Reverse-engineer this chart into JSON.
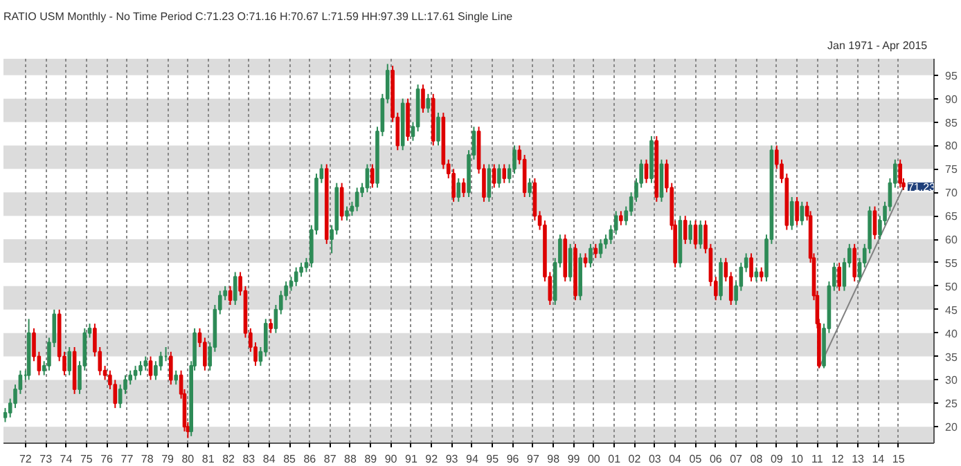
{
  "chart_data": {
    "type": "candlestick",
    "title": "RATIO USM Monthly -  No Time Period   C:71.23 O:71.16 H:70.67 L:71.59 HH:97.39 LL:17.61 Single Line",
    "subtitle": "Jan 1971  -  Apr 2015",
    "x": [
      "1971-01",
      "1971-04",
      "1971-07",
      "1971-10",
      "1972-01",
      "1972-03",
      "1972-06",
      "1972-09",
      "1972-12",
      "1973-03",
      "1973-06",
      "1973-09",
      "1973-12",
      "1974-03",
      "1974-06",
      "1974-09",
      "1974-12",
      "1975-03",
      "1975-06",
      "1975-09",
      "1975-12",
      "1976-03",
      "1976-06",
      "1976-09",
      "1976-12",
      "1977-03",
      "1977-06",
      "1977-09",
      "1977-12",
      "1978-03",
      "1978-06",
      "1978-09",
      "1978-12",
      "1979-03",
      "1979-06",
      "1979-09",
      "1979-11",
      "1980-01",
      "1980-03",
      "1980-05",
      "1980-08",
      "1980-11",
      "1981-02",
      "1981-05",
      "1981-08",
      "1981-11",
      "1982-02",
      "1982-05",
      "1982-08",
      "1982-11",
      "1983-02",
      "1983-05",
      "1983-08",
      "1983-11",
      "1984-02",
      "1984-05",
      "1984-08",
      "1984-11",
      "1985-02",
      "1985-05",
      "1985-08",
      "1985-11",
      "1986-02",
      "1986-05",
      "1986-08",
      "1986-11",
      "1987-02",
      "1987-05",
      "1987-08",
      "1987-11",
      "1988-02",
      "1988-05",
      "1988-08",
      "1988-11",
      "1989-02",
      "1989-05",
      "1989-08",
      "1989-11",
      "1990-02",
      "1990-05",
      "1990-08",
      "1990-11",
      "1991-02",
      "1991-05",
      "1991-08",
      "1991-11",
      "1992-02",
      "1992-05",
      "1992-08",
      "1992-11",
      "1993-02",
      "1993-05",
      "1993-08",
      "1993-11",
      "1994-02",
      "1994-05",
      "1994-08",
      "1994-11",
      "1995-02",
      "1995-05",
      "1995-08",
      "1995-11",
      "1996-02",
      "1996-05",
      "1996-08",
      "1996-11",
      "1997-02",
      "1997-05",
      "1997-08",
      "1997-11",
      "1998-02",
      "1998-05",
      "1998-08",
      "1998-11",
      "1999-02",
      "1999-05",
      "1999-08",
      "1999-11",
      "2000-02",
      "2000-05",
      "2000-08",
      "2000-11",
      "2001-02",
      "2001-05",
      "2001-08",
      "2001-11",
      "2002-02",
      "2002-05",
      "2002-08",
      "2002-11",
      "2003-02",
      "2003-05",
      "2003-08",
      "2003-11",
      "2004-01",
      "2004-04",
      "2004-07",
      "2004-10",
      "2005-01",
      "2005-04",
      "2005-07",
      "2005-10",
      "2006-01",
      "2006-04",
      "2006-07",
      "2006-10",
      "2007-01",
      "2007-04",
      "2007-07",
      "2007-10",
      "2008-01",
      "2008-04",
      "2008-07",
      "2008-10",
      "2009-01",
      "2009-04",
      "2009-07",
      "2009-10",
      "2010-01",
      "2010-04",
      "2010-07",
      "2010-09",
      "2010-11",
      "2011-01",
      "2011-02",
      "2011-05",
      "2011-08",
      "2011-11",
      "2012-02",
      "2012-05",
      "2012-08",
      "2012-11",
      "2013-02",
      "2013-05",
      "2013-08",
      "2013-11",
      "2014-02",
      "2014-05",
      "2014-08",
      "2014-11",
      "2015-02",
      "2015-04"
    ],
    "ohlc": [
      [
        22,
        24,
        21,
        23
      ],
      [
        23,
        26,
        22,
        25
      ],
      [
        25,
        29,
        24,
        28
      ],
      [
        28,
        32,
        27,
        31
      ],
      [
        31,
        32,
        30,
        31
      ],
      [
        31,
        43,
        30,
        40
      ],
      [
        40,
        41,
        34,
        35
      ],
      [
        35,
        36,
        31,
        32
      ],
      [
        32,
        34,
        31,
        33
      ],
      [
        33,
        39,
        32,
        38
      ],
      [
        38,
        45,
        37,
        44
      ],
      [
        44,
        45,
        34,
        35
      ],
      [
        35,
        36,
        31,
        32
      ],
      [
        32,
        37,
        31,
        36
      ],
      [
        36,
        37,
        27,
        28
      ],
      [
        28,
        34,
        27,
        33
      ],
      [
        33,
        41,
        32,
        40
      ],
      [
        40,
        42,
        39,
        41
      ],
      [
        41,
        42,
        35,
        36
      ],
      [
        36,
        37,
        31,
        32
      ],
      [
        32,
        33,
        30,
        31
      ],
      [
        31,
        32,
        28,
        29
      ],
      [
        29,
        30,
        24,
        25
      ],
      [
        25,
        29,
        24,
        28
      ],
      [
        28,
        31,
        27,
        30
      ],
      [
        30,
        32,
        29,
        31
      ],
      [
        31,
        33,
        30,
        32
      ],
      [
        32,
        34,
        31,
        33
      ],
      [
        33,
        35,
        32,
        34
      ],
      [
        34,
        35,
        30,
        31
      ],
      [
        31,
        34,
        30,
        33
      ],
      [
        33,
        36,
        32,
        35
      ],
      [
        35,
        37,
        34,
        35
      ],
      [
        35,
        36,
        29,
        30
      ],
      [
        30,
        32,
        29,
        31
      ],
      [
        31,
        32,
        26,
        27
      ],
      [
        27,
        28,
        19,
        20
      ],
      [
        20,
        21,
        17.61,
        19
      ],
      [
        19,
        34,
        18,
        33
      ],
      [
        33,
        41,
        32,
        40
      ],
      [
        40,
        41,
        37,
        38
      ],
      [
        38,
        39,
        32,
        33
      ],
      [
        33,
        38,
        32,
        37
      ],
      [
        37,
        46,
        36,
        45
      ],
      [
        45,
        49,
        44,
        48
      ],
      [
        48,
        50,
        47,
        49
      ],
      [
        49,
        50,
        46,
        47
      ],
      [
        47,
        53,
        46,
        52
      ],
      [
        52,
        53,
        48,
        49
      ],
      [
        49,
        50,
        39,
        40
      ],
      [
        40,
        41,
        36,
        37
      ],
      [
        37,
        38,
        33,
        34
      ],
      [
        34,
        37,
        33,
        36
      ],
      [
        36,
        43,
        35,
        42
      ],
      [
        42,
        43,
        40,
        41
      ],
      [
        41,
        46,
        40,
        45
      ],
      [
        45,
        49,
        44,
        48
      ],
      [
        48,
        51,
        47,
        50
      ],
      [
        50,
        52,
        49,
        51
      ],
      [
        51,
        54,
        50,
        53
      ],
      [
        53,
        55,
        52,
        54
      ],
      [
        54,
        56,
        53,
        55
      ],
      [
        55,
        63,
        54,
        62
      ],
      [
        62,
        74,
        61,
        73
      ],
      [
        73,
        76,
        72,
        75
      ],
      [
        75,
        76,
        59,
        60
      ],
      [
        60,
        63,
        57,
        62
      ],
      [
        62,
        72,
        61,
        71
      ],
      [
        71,
        72,
        64,
        65
      ],
      [
        65,
        67,
        64,
        66
      ],
      [
        66,
        68,
        65,
        67
      ],
      [
        67,
        71,
        66,
        70
      ],
      [
        70,
        72,
        69,
        71
      ],
      [
        71,
        76,
        70,
        75
      ],
      [
        75,
        76,
        71,
        72
      ],
      [
        72,
        84,
        71,
        83
      ],
      [
        83,
        91,
        82,
        90
      ],
      [
        90,
        97.39,
        89,
        96
      ],
      [
        96,
        97,
        85,
        86
      ],
      [
        86,
        87,
        79,
        80
      ],
      [
        80,
        90,
        79,
        89
      ],
      [
        89,
        90,
        81,
        82
      ],
      [
        82,
        85,
        81,
        84
      ],
      [
        84,
        93,
        83,
        92
      ],
      [
        92,
        93,
        87,
        88
      ],
      [
        88,
        91,
        87,
        90
      ],
      [
        90,
        91,
        80,
        81
      ],
      [
        81,
        87,
        80,
        86
      ],
      [
        86,
        87,
        75,
        76
      ],
      [
        76,
        77,
        73,
        74
      ],
      [
        74,
        75,
        68,
        69
      ],
      [
        69,
        73,
        68,
        72
      ],
      [
        72,
        73,
        69,
        70
      ],
      [
        70,
        79,
        69,
        78
      ],
      [
        78,
        84,
        77,
        83
      ],
      [
        83,
        84,
        74,
        75
      ],
      [
        75,
        76,
        68,
        69
      ],
      [
        69,
        76,
        68,
        75
      ],
      [
        75,
        76,
        71,
        72
      ],
      [
        72,
        76,
        71,
        75
      ],
      [
        75,
        76,
        72,
        73
      ],
      [
        73,
        76,
        72,
        75
      ],
      [
        75,
        80,
        74,
        79
      ],
      [
        79,
        80,
        76,
        77
      ],
      [
        77,
        78,
        69,
        70
      ],
      [
        70,
        73,
        69,
        72
      ],
      [
        72,
        73,
        64,
        65
      ],
      [
        65,
        66,
        62,
        63
      ],
      [
        63,
        64,
        51,
        52
      ],
      [
        52,
        53,
        46,
        47
      ],
      [
        47,
        56,
        46,
        55
      ],
      [
        55,
        61,
        54,
        60
      ],
      [
        60,
        61,
        51,
        52
      ],
      [
        52,
        59,
        51,
        58
      ],
      [
        58,
        59,
        47,
        48
      ],
      [
        48,
        57,
        47,
        56
      ],
      [
        56,
        57,
        54,
        55
      ],
      [
        55,
        59,
        54,
        58
      ],
      [
        58,
        59,
        56,
        57
      ],
      [
        57,
        60,
        56,
        59
      ],
      [
        59,
        61,
        58,
        60
      ],
      [
        60,
        63,
        59,
        62
      ],
      [
        62,
        66,
        61,
        65
      ],
      [
        65,
        66,
        63,
        64
      ],
      [
        64,
        67,
        63,
        66
      ],
      [
        66,
        70,
        65,
        69
      ],
      [
        69,
        73,
        68,
        72
      ],
      [
        72,
        77,
        71,
        76
      ],
      [
        76,
        77,
        72,
        73
      ],
      [
        73,
        82,
        72,
        81
      ],
      [
        81,
        82,
        68,
        69
      ],
      [
        69,
        77,
        68,
        76
      ],
      [
        76,
        77,
        70,
        71
      ],
      [
        71,
        72,
        62,
        63
      ],
      [
        63,
        64,
        54,
        55
      ],
      [
        55,
        65,
        54,
        64
      ],
      [
        64,
        65,
        59,
        60
      ],
      [
        60,
        64,
        59,
        63
      ],
      [
        63,
        64,
        58,
        59
      ],
      [
        59,
        64,
        58,
        63
      ],
      [
        63,
        64,
        57,
        58
      ],
      [
        58,
        59,
        50,
        51
      ],
      [
        51,
        52,
        47,
        48
      ],
      [
        48,
        56,
        47,
        55
      ],
      [
        55,
        56,
        51,
        52
      ],
      [
        52,
        53,
        46,
        47
      ],
      [
        47,
        51,
        46,
        50
      ],
      [
        50,
        55,
        49,
        54
      ],
      [
        54,
        57,
        53,
        56
      ],
      [
        56,
        57,
        51,
        52
      ],
      [
        52,
        54,
        51,
        53
      ],
      [
        53,
        54,
        51,
        52
      ],
      [
        52,
        61,
        51,
        60
      ],
      [
        60,
        80,
        59,
        79
      ],
      [
        79,
        80,
        75,
        76
      ],
      [
        76,
        77,
        72,
        73
      ],
      [
        73,
        74,
        62,
        63
      ],
      [
        63,
        69,
        62,
        68
      ],
      [
        68,
        69,
        63,
        64
      ],
      [
        64,
        68,
        63,
        67
      ],
      [
        67,
        68,
        64,
        65
      ],
      [
        65,
        66,
        55,
        56
      ],
      [
        56,
        57,
        47,
        48
      ],
      [
        48,
        49,
        41,
        42
      ],
      [
        42,
        43,
        32.5,
        33
      ],
      [
        33,
        42,
        32.5,
        41
      ],
      [
        41,
        51,
        40,
        50
      ],
      [
        50,
        55,
        49,
        54
      ],
      [
        54,
        55,
        49,
        50
      ],
      [
        50,
        56,
        49,
        55
      ],
      [
        55,
        59,
        54,
        58
      ],
      [
        58,
        59,
        51,
        52
      ],
      [
        52,
        56,
        51,
        55
      ],
      [
        55,
        59,
        54,
        58
      ],
      [
        58,
        67,
        57,
        66
      ],
      [
        66,
        67,
        60,
        61
      ],
      [
        61,
        65,
        60,
        64
      ],
      [
        64,
        68,
        63,
        67
      ],
      [
        67,
        73,
        66,
        72
      ],
      [
        72,
        77,
        71,
        76
      ],
      [
        76,
        77,
        71,
        72
      ],
      [
        72,
        73,
        70.5,
        71.23
      ]
    ],
    "series": [
      {
        "type": "line",
        "color": "#808080",
        "x": [
          "2011-02",
          "2015-04"
        ],
        "values": [
          32.5,
          71.2
        ]
      }
    ],
    "annotations": [
      {
        "text": "71.23",
        "x": "2015-04",
        "y": 71.23
      }
    ],
    "bands": [
      {
        "axis": "y",
        "from": 16.5,
        "to": 20,
        "color": "#dcdcdc"
      },
      {
        "axis": "y",
        "from": 25,
        "to": 30,
        "color": "#dcdcdc"
      },
      {
        "axis": "y",
        "from": 35,
        "to": 40,
        "color": "#dcdcdc"
      },
      {
        "axis": "y",
        "from": 45,
        "to": 50,
        "color": "#dcdcdc"
      },
      {
        "axis": "y",
        "from": 55,
        "to": 60,
        "color": "#dcdcdc"
      },
      {
        "axis": "y",
        "from": 65,
        "to": 70,
        "color": "#dcdcdc"
      },
      {
        "axis": "y",
        "from": 75,
        "to": 80,
        "color": "#dcdcdc"
      },
      {
        "axis": "y",
        "from": 85,
        "to": 90,
        "color": "#dcdcdc"
      },
      {
        "axis": "y",
        "from": 95,
        "to": 98.5,
        "color": "#dcdcdc"
      }
    ],
    "xlim": [
      "1970-12",
      "2016-10"
    ],
    "xticks": [
      {
        "value": "1972",
        "label": "72"
      },
      {
        "value": "1973",
        "label": "73"
      },
      {
        "value": "1974",
        "label": "74"
      },
      {
        "value": "1975",
        "label": "75"
      },
      {
        "value": "1976",
        "label": "76"
      },
      {
        "value": "1977",
        "label": "77"
      },
      {
        "value": "1978",
        "label": "78"
      },
      {
        "value": "1979",
        "label": "79"
      },
      {
        "value": "1980",
        "label": "80"
      },
      {
        "value": "1981",
        "label": "81"
      },
      {
        "value": "1982",
        "label": "82"
      },
      {
        "value": "1983",
        "label": "83"
      },
      {
        "value": "1984",
        "label": "84"
      },
      {
        "value": "1985",
        "label": "85"
      },
      {
        "value": "1986",
        "label": "86"
      },
      {
        "value": "1987",
        "label": "87"
      },
      {
        "value": "1988",
        "label": "88"
      },
      {
        "value": "1989",
        "label": "89"
      },
      {
        "value": "1990",
        "label": "90"
      },
      {
        "value": "1991",
        "label": "91"
      },
      {
        "value": "1992",
        "label": "92"
      },
      {
        "value": "1993",
        "label": "93"
      },
      {
        "value": "1994",
        "label": "94"
      },
      {
        "value": "1995",
        "label": "95"
      },
      {
        "value": "1996",
        "label": "96"
      },
      {
        "value": "1997",
        "label": "97"
      },
      {
        "value": "1998",
        "label": "98"
      },
      {
        "value": "1999",
        "label": "99"
      },
      {
        "value": "2000",
        "label": "00"
      },
      {
        "value": "2001",
        "label": "01"
      },
      {
        "value": "2002",
        "label": "02"
      },
      {
        "value": "2003",
        "label": "03"
      },
      {
        "value": "2004",
        "label": "04"
      },
      {
        "value": "2005",
        "label": "05"
      },
      {
        "value": "2006",
        "label": "06"
      },
      {
        "value": "2007",
        "label": "07"
      },
      {
        "value": "2008",
        "label": "08"
      },
      {
        "value": "2009",
        "label": "09"
      },
      {
        "value": "2010",
        "label": "10"
      },
      {
        "value": "2011",
        "label": "11"
      },
      {
        "value": "2012",
        "label": "12"
      },
      {
        "value": "2013",
        "label": "13"
      },
      {
        "value": "2014",
        "label": "14"
      },
      {
        "value": "2015",
        "label": "15"
      }
    ],
    "ylim": [
      16.5,
      98.5
    ],
    "yticks": [
      20,
      25,
      30,
      35,
      40,
      45,
      50,
      55,
      60,
      65,
      70,
      75,
      80,
      85,
      90,
      95
    ],
    "grid": "x"
  }
}
